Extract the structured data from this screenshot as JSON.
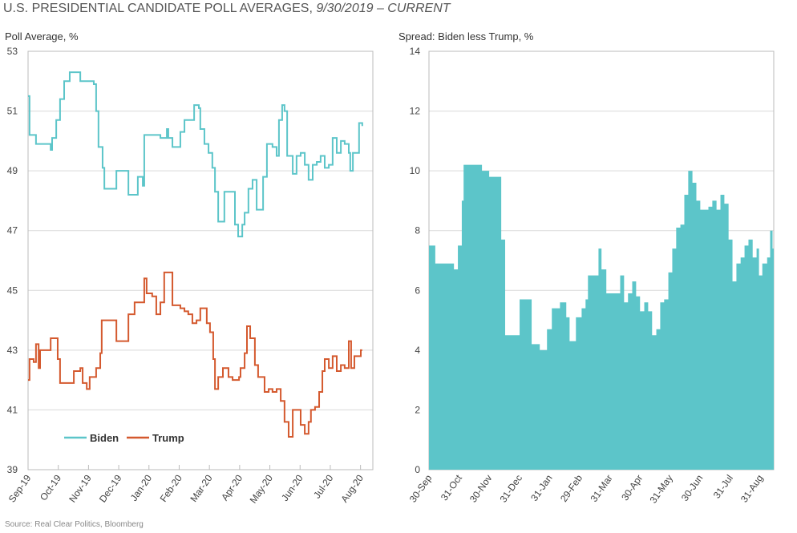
{
  "title": {
    "main": "U.S. PRESIDENTIAL CANDIDATE POLL AVERAGES, ",
    "italic": "9/30/2019 – CURRENT"
  },
  "source": "Source: Real Clear Politics, Bloomberg",
  "colors": {
    "biden": "#5cc5c9",
    "trump": "#d4592e",
    "grid": "#d9d9d9"
  },
  "chart_data": [
    {
      "type": "line",
      "title": "Poll Average, %",
      "xlabel": "",
      "ylabel": "Poll Average, %",
      "x_units": "months since 30-Sep-2019",
      "xlim": [
        0,
        11.75
      ],
      "ylim": [
        39,
        53
      ],
      "yticks": [
        39,
        41,
        43,
        45,
        47,
        49,
        51,
        53
      ],
      "xtick_labels": [
        "Sep-19",
        "Oct-19",
        "Nov-19",
        "Dec-19",
        "Jan-20",
        "Feb-20",
        "Mar-20",
        "Apr-20",
        "May-20",
        "Jun-20",
        "Jul-20",
        "Aug-20"
      ],
      "grid": true,
      "legend": {
        "placement": "bottom-left",
        "entries": [
          "Biden",
          "Trump"
        ]
      },
      "series": [
        {
          "name": "Biden",
          "color_key": "biden",
          "x": [
            0,
            0.05,
            0.27,
            0.68,
            0.77,
            0.82,
            0.96,
            1.09,
            1.23,
            1.42,
            1.69,
            1.78,
            2.05,
            2.24,
            2.32,
            2.4,
            2.54,
            2.6,
            2.87,
            3.01,
            3.36,
            3.42,
            3.63,
            3.74,
            3.91,
            3.96,
            4.51,
            4.64,
            4.73,
            4.78,
            4.92,
            5.05,
            5.19,
            5.33,
            5.6,
            5.66,
            5.82,
            5.87,
            6.01,
            6.15,
            6.28,
            6.37,
            6.48,
            6.64,
            6.69,
            6.97,
            7.05,
            7.16,
            7.3,
            7.38,
            7.51,
            7.65,
            7.79,
            7.92,
            8.01,
            8.14,
            8.33,
            8.47,
            8.55,
            8.66,
            8.74,
            8.83,
            9.02,
            9.15,
            9.29,
            9.43,
            9.56,
            9.7,
            9.84,
            9.97,
            10.11,
            10.25,
            10.38,
            10.52,
            10.66,
            10.79,
            10.93,
            10.98,
            11.07,
            11.2,
            11.28,
            11.39
          ],
          "y": [
            51.5,
            50.2,
            49.9,
            49.9,
            49.7,
            50.1,
            50.7,
            51.4,
            52.0,
            52.3,
            52.3,
            52.0,
            52.0,
            51.9,
            51.0,
            49.8,
            49.1,
            48.4,
            48.4,
            49.0,
            49.0,
            48.2,
            48.2,
            48.8,
            48.5,
            50.2,
            50.1,
            50.1,
            50.4,
            50.1,
            49.8,
            49.8,
            50.3,
            50.7,
            50.7,
            51.2,
            51.1,
            50.4,
            49.9,
            49.6,
            49.1,
            48.3,
            47.3,
            47.3,
            48.3,
            48.3,
            47.2,
            46.8,
            47.2,
            47.6,
            48.4,
            48.7,
            47.7,
            47.7,
            48.8,
            49.9,
            49.8,
            49.5,
            50.7,
            51.2,
            51.0,
            49.5,
            48.9,
            49.5,
            49.6,
            49.2,
            48.7,
            49.2,
            49.3,
            49.5,
            49.1,
            49.2,
            50.1,
            49.6,
            50.0,
            49.9,
            49.6,
            49.0,
            49.6,
            49.6,
            50.6,
            50.5
          ]
        },
        {
          "name": "Trump",
          "color_key": "trump",
          "x": [
            0,
            0.05,
            0.19,
            0.27,
            0.36,
            0.41,
            0.68,
            0.77,
            0.96,
            1.01,
            1.09,
            1.45,
            1.56,
            1.78,
            1.86,
            2.0,
            2.1,
            2.19,
            2.32,
            2.46,
            2.51,
            2.87,
            3.01,
            3.36,
            3.42,
            3.63,
            3.83,
            3.96,
            4.04,
            4.23,
            4.37,
            4.51,
            4.64,
            4.73,
            4.92,
            5.19,
            5.33,
            5.46,
            5.6,
            5.74,
            5.87,
            6.01,
            6.09,
            6.2,
            6.31,
            6.37,
            6.48,
            6.64,
            6.83,
            6.97,
            7.19,
            7.24,
            7.38,
            7.46,
            7.57,
            7.73,
            7.84,
            7.92,
            8.06,
            8.2,
            8.33,
            8.47,
            8.61,
            8.74,
            8.88,
            8.96,
            9.02,
            9.21,
            9.29,
            9.43,
            9.56,
            9.64,
            9.78,
            9.92,
            10.03,
            10.11,
            10.25,
            10.38,
            10.52,
            10.66,
            10.79,
            10.93,
            11.01,
            11.12,
            11.28,
            11.34,
            11.39
          ],
          "y": [
            42.0,
            42.7,
            42.6,
            43.2,
            42.4,
            43.0,
            43.0,
            43.4,
            43.4,
            42.7,
            41.9,
            41.9,
            42.3,
            42.4,
            41.9,
            41.7,
            42.1,
            42.1,
            42.4,
            42.9,
            44.0,
            44.0,
            43.3,
            43.3,
            44.2,
            44.6,
            44.6,
            45.4,
            44.9,
            44.8,
            44.2,
            44.6,
            45.6,
            45.6,
            44.5,
            44.4,
            44.3,
            44.2,
            43.9,
            44.0,
            44.4,
            44.4,
            43.9,
            43.6,
            42.7,
            41.7,
            42.1,
            42.4,
            42.1,
            42.0,
            42.1,
            42.4,
            42.9,
            43.8,
            43.4,
            42.5,
            42.1,
            42.1,
            41.6,
            41.7,
            41.6,
            41.7,
            41.3,
            40.6,
            40.1,
            40.1,
            41.0,
            41.0,
            40.5,
            40.2,
            40.6,
            41.0,
            41.1,
            41.6,
            42.3,
            42.7,
            42.4,
            42.8,
            42.3,
            42.5,
            42.4,
            43.3,
            42.4,
            42.8,
            42.8,
            43.0,
            43.0
          ]
        }
      ]
    },
    {
      "type": "area",
      "title": "Spread: Biden less Trump, %",
      "xlabel": "",
      "ylabel": "Spread: Biden less Trump, %",
      "x_units": "months since 30-Sep-2019",
      "xlim": [
        0,
        11.45
      ],
      "ylim": [
        0,
        14
      ],
      "yticks": [
        0,
        2,
        4,
        6,
        8,
        10,
        12,
        14
      ],
      "xtick_labels": [
        "30-Sep",
        "31-Oct",
        "30-Nov",
        "31-Dec",
        "31-Jan",
        "29-Feb",
        "31-Mar",
        "30-Apr",
        "31-May",
        "30-Jun",
        "31-Jul",
        "31-Aug"
      ],
      "grid": true,
      "series": [
        {
          "name": "Spread",
          "color_key": "biden",
          "x": [
            0,
            0.21,
            0.75,
            0.83,
            0.96,
            1.09,
            1.15,
            1.68,
            1.76,
            1.87,
            2.0,
            2.27,
            2.4,
            2.53,
            2.61,
            2.96,
            3.01,
            3.36,
            3.41,
            3.6,
            3.68,
            3.81,
            3.92,
            4.08,
            4.35,
            4.56,
            4.67,
            4.83,
            4.88,
            5.07,
            5.2,
            5.28,
            5.55,
            5.63,
            5.73,
            5.89,
            6.21,
            6.35,
            6.48,
            6.61,
            6.75,
            6.88,
            7.01,
            7.15,
            7.28,
            7.41,
            7.55,
            7.68,
            7.81,
            7.95,
            8.08,
            8.21,
            8.35,
            8.48,
            8.61,
            8.75,
            8.88,
            9.01,
            9.28,
            9.41,
            9.55,
            9.68,
            9.81,
            9.95,
            10.08,
            10.21,
            10.35,
            10.48,
            10.61,
            10.75,
            10.88,
            10.96,
            11.07,
            11.23,
            11.33,
            11.41
          ],
          "y": [
            7.5,
            6.9,
            6.9,
            6.7,
            7.5,
            9.0,
            10.2,
            10.2,
            10.0,
            10.0,
            9.8,
            9.8,
            7.7,
            4.5,
            4.5,
            4.5,
            5.7,
            5.7,
            4.2,
            4.2,
            4.0,
            4.0,
            4.7,
            5.4,
            5.6,
            5.1,
            4.3,
            4.3,
            5.1,
            5.4,
            5.7,
            6.5,
            6.5,
            7.4,
            6.7,
            5.9,
            5.9,
            6.5,
            5.6,
            5.9,
            6.3,
            5.8,
            5.3,
            5.6,
            5.3,
            4.5,
            4.7,
            5.6,
            5.7,
            6.6,
            7.4,
            8.1,
            8.2,
            9.2,
            10.0,
            9.6,
            9.0,
            8.7,
            8.8,
            9.0,
            8.7,
            9.2,
            8.9,
            7.7,
            6.3,
            6.9,
            7.1,
            7.5,
            7.7,
            7.1,
            7.4,
            6.5,
            6.9,
            7.1,
            8.0,
            7.4
          ]
        }
      ]
    }
  ]
}
